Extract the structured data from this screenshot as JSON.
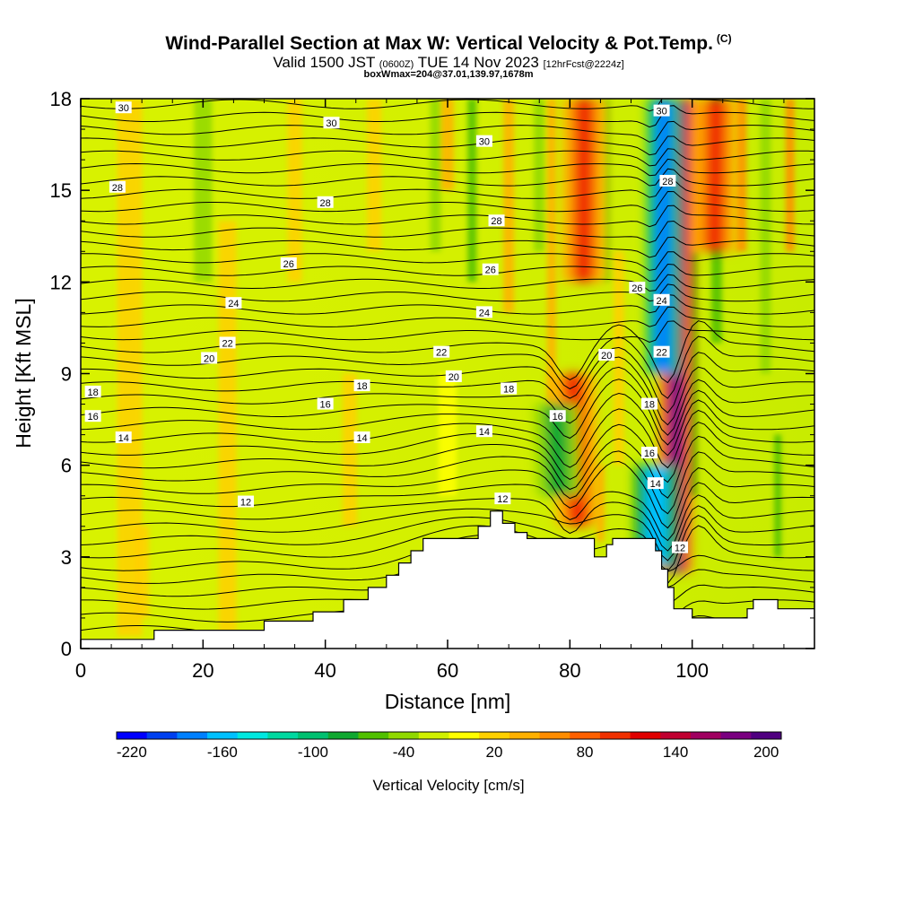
{
  "header": {
    "title": "Wind-Parallel Section at Max W: Vertical Velocity & Pot.Temp.",
    "title_tag": "(C)",
    "subtitle_pre": "Valid 1500 JST",
    "subtitle_small1": "(0600Z)",
    "subtitle_mid": "TUE 14 Nov 2023",
    "subtitle_small2": "[12hrFcst@2224z]",
    "box_line": "boxWmax=204@37.01,139.97,1678m"
  },
  "chart_data": {
    "type": "heatmap",
    "xlabel": "Distance [nm]",
    "ylabel": "Height [Kft MSL]",
    "xlim": [
      0,
      120
    ],
    "ylim": [
      0,
      18
    ],
    "xticks": [
      0,
      20,
      40,
      60,
      80,
      100
    ],
    "yticks": [
      0,
      3,
      6,
      9,
      12,
      15,
      18
    ],
    "grid": false,
    "colorbar": {
      "title": "Vertical Velocity [cm/s]",
      "placement": "bottom",
      "labels": [
        "-220",
        "-160",
        "-100",
        "-40",
        "20",
        "80",
        "140",
        "200"
      ],
      "colors": [
        "#0000ff",
        "#0040f0",
        "#0080ff",
        "#00c0ff",
        "#00e8e0",
        "#00d8a0",
        "#00c070",
        "#10a830",
        "#50c000",
        "#90d800",
        "#d0f000",
        "#ffff00",
        "#ffd000",
        "#ffb000",
        "#ff8c00",
        "#ff6000",
        "#f03000",
        "#e00000",
        "#c00030",
        "#a00060",
        "#7a0080",
        "#500080"
      ]
    },
    "terrain": [
      [
        0,
        0.3
      ],
      [
        12,
        0.3
      ],
      [
        12,
        0.6
      ],
      [
        30,
        0.6
      ],
      [
        30,
        0.9
      ],
      [
        38,
        0.9
      ],
      [
        38,
        1.2
      ],
      [
        43,
        1.2
      ],
      [
        43,
        1.6
      ],
      [
        47,
        1.6
      ],
      [
        47,
        2.0
      ],
      [
        50,
        2.0
      ],
      [
        50,
        2.4
      ],
      [
        52,
        2.4
      ],
      [
        52,
        2.8
      ],
      [
        54,
        2.8
      ],
      [
        54,
        3.2
      ],
      [
        56,
        3.2
      ],
      [
        56,
        3.6
      ],
      [
        65,
        3.6
      ],
      [
        65,
        4.0
      ],
      [
        67,
        4.0
      ],
      [
        67,
        4.5
      ],
      [
        69,
        4.5
      ],
      [
        69,
        4.1
      ],
      [
        71,
        4.1
      ],
      [
        71,
        3.8
      ],
      [
        73,
        3.8
      ],
      [
        73,
        3.6
      ],
      [
        84,
        3.6
      ],
      [
        84,
        3.0
      ],
      [
        86,
        3.0
      ],
      [
        86,
        3.4
      ],
      [
        87,
        3.4
      ],
      [
        87,
        3.6
      ],
      [
        94,
        3.6
      ],
      [
        94,
        3.2
      ],
      [
        95,
        3.2
      ],
      [
        95,
        2.6
      ],
      [
        96,
        2.6
      ],
      [
        96,
        2.0
      ],
      [
        97,
        2.0
      ],
      [
        97,
        1.3
      ],
      [
        100,
        1.3
      ],
      [
        100,
        1.0
      ],
      [
        109,
        1.0
      ],
      [
        109,
        1.3
      ],
      [
        110,
        1.3
      ],
      [
        110,
        1.6
      ],
      [
        114,
        1.6
      ],
      [
        114,
        1.3
      ],
      [
        120,
        1.3
      ]
    ],
    "vertical_velocity_features_cm_s": [
      {
        "x": 97,
        "z_range": [
          2.5,
          18
        ],
        "w": 200
      },
      {
        "x": 95,
        "z_range": [
          9,
          18
        ],
        "w": -180
      },
      {
        "x": 94,
        "z_range": [
          2.7,
          6
        ],
        "w": -150
      },
      {
        "x": 82,
        "z_range": [
          4,
          9
        ],
        "w": 110
      },
      {
        "x": 79,
        "z_range": [
          5,
          8
        ],
        "w": -80
      },
      {
        "x": 82,
        "z_range": [
          12,
          18
        ],
        "w": 110
      },
      {
        "x": 103,
        "z_range": [
          13,
          18
        ],
        "w": 110
      }
    ],
    "theta_contour_labels": [
      {
        "x": 7,
        "y": 17.7,
        "text": "30"
      },
      {
        "x": 41,
        "y": 17.2,
        "text": "30"
      },
      {
        "x": 66,
        "y": 16.6,
        "text": "30"
      },
      {
        "x": 95,
        "y": 17.6,
        "text": "30"
      },
      {
        "x": 6,
        "y": 15.1,
        "text": "28"
      },
      {
        "x": 40,
        "y": 14.6,
        "text": "28"
      },
      {
        "x": 68,
        "y": 14.0,
        "text": "28"
      },
      {
        "x": 96,
        "y": 15.3,
        "text": "28"
      },
      {
        "x": 34,
        "y": 12.6,
        "text": "26"
      },
      {
        "x": 67,
        "y": 12.4,
        "text": "26"
      },
      {
        "x": 91,
        "y": 11.8,
        "text": "26"
      },
      {
        "x": 25,
        "y": 11.3,
        "text": "24"
      },
      {
        "x": 66,
        "y": 11.0,
        "text": "24"
      },
      {
        "x": 95,
        "y": 11.4,
        "text": "24"
      },
      {
        "x": 24,
        "y": 10.0,
        "text": "22"
      },
      {
        "x": 59,
        "y": 9.7,
        "text": "22"
      },
      {
        "x": 95,
        "y": 9.7,
        "text": "22"
      },
      {
        "x": 21,
        "y": 9.5,
        "text": "20"
      },
      {
        "x": 61,
        "y": 8.9,
        "text": "20"
      },
      {
        "x": 86,
        "y": 9.6,
        "text": "20"
      },
      {
        "x": 2,
        "y": 8.4,
        "text": "18"
      },
      {
        "x": 46,
        "y": 8.6,
        "text": "18"
      },
      {
        "x": 70,
        "y": 8.5,
        "text": "18"
      },
      {
        "x": 93,
        "y": 8.0,
        "text": "18"
      },
      {
        "x": 2,
        "y": 7.6,
        "text": "16"
      },
      {
        "x": 40,
        "y": 8.0,
        "text": "16"
      },
      {
        "x": 78,
        "y": 7.6,
        "text": "16"
      },
      {
        "x": 93,
        "y": 6.4,
        "text": "16"
      },
      {
        "x": 7,
        "y": 6.9,
        "text": "14"
      },
      {
        "x": 46,
        "y": 6.9,
        "text": "14"
      },
      {
        "x": 66,
        "y": 7.1,
        "text": "14"
      },
      {
        "x": 94,
        "y": 5.4,
        "text": "14"
      },
      {
        "x": 27,
        "y": 4.8,
        "text": "12"
      },
      {
        "x": 69,
        "y": 4.9,
        "text": "12"
      },
      {
        "x": 98,
        "y": 3.3,
        "text": "12"
      }
    ]
  }
}
